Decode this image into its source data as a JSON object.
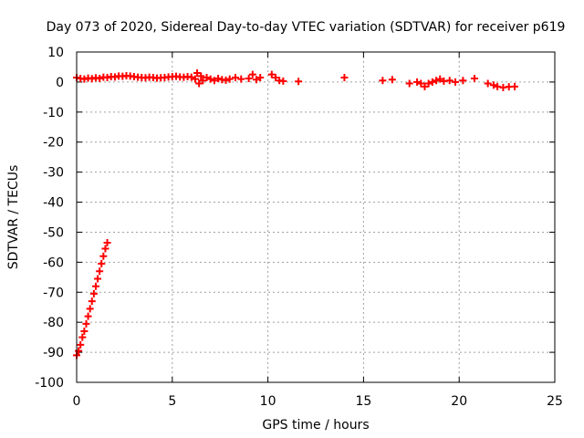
{
  "chart_data": {
    "type": "scatter",
    "title": "Day 073 of 2020, Sidereal Day-to-day VTEC variation (SDTVAR) for receiver p619",
    "xlabel": "GPS time / hours",
    "ylabel": "SDTVAR / TECUs",
    "xlim": [
      0,
      25
    ],
    "ylim": [
      -100,
      10
    ],
    "xticks": [
      "0",
      "5",
      "10",
      "15",
      "20",
      "25"
    ],
    "yticks": [
      "10",
      "0",
      "-10",
      "-20",
      "-30",
      "-40",
      "-50",
      "-60",
      "-70",
      "-80",
      "-90",
      "-100"
    ],
    "grid": true,
    "marker": "plus",
    "color": "#ff0000",
    "series": [
      {
        "points": [
          [
            0.0,
            1.5
          ],
          [
            0.2,
            1.2
          ],
          [
            0.4,
            1.0
          ],
          [
            0.6,
            1.3
          ],
          [
            0.8,
            1.1
          ],
          [
            1.0,
            1.4
          ],
          [
            1.2,
            1.2
          ],
          [
            1.4,
            1.6
          ],
          [
            1.6,
            1.5
          ],
          [
            1.8,
            1.8
          ],
          [
            2.0,
            1.7
          ],
          [
            2.2,
            2.0
          ],
          [
            2.4,
            1.9
          ],
          [
            2.6,
            2.1
          ],
          [
            2.8,
            2.0
          ],
          [
            3.0,
            1.8
          ],
          [
            3.2,
            1.6
          ],
          [
            3.4,
            1.5
          ],
          [
            3.6,
            1.4
          ],
          [
            3.8,
            1.6
          ],
          [
            4.0,
            1.5
          ],
          [
            4.2,
            1.3
          ],
          [
            4.4,
            1.4
          ],
          [
            4.6,
            1.5
          ],
          [
            4.8,
            1.7
          ],
          [
            5.0,
            1.8
          ],
          [
            5.2,
            1.9
          ],
          [
            5.4,
            1.7
          ],
          [
            5.6,
            1.6
          ],
          [
            5.8,
            1.8
          ],
          [
            6.0,
            1.6
          ],
          [
            6.2,
            1.0
          ],
          [
            6.3,
            3.0
          ],
          [
            6.4,
            -0.5
          ],
          [
            6.5,
            2.0
          ],
          [
            6.6,
            0.5
          ],
          [
            6.8,
            1.5
          ],
          [
            7.0,
            1.0
          ],
          [
            7.2,
            0.5
          ],
          [
            7.4,
            1.2
          ],
          [
            7.6,
            0.8
          ],
          [
            7.8,
            0.6
          ],
          [
            8.0,
            1.0
          ],
          [
            8.3,
            1.5
          ],
          [
            8.6,
            1.0
          ],
          [
            9.0,
            1.2
          ],
          [
            9.2,
            2.5
          ],
          [
            9.4,
            0.8
          ],
          [
            9.6,
            1.5
          ],
          [
            10.2,
            2.5
          ],
          [
            10.4,
            1.5
          ],
          [
            10.6,
            0.5
          ],
          [
            10.8,
            0.3
          ],
          [
            11.6,
            0.2
          ],
          [
            14.0,
            1.5
          ],
          [
            16.0,
            0.5
          ],
          [
            16.5,
            0.8
          ],
          [
            17.4,
            -0.5
          ],
          [
            17.8,
            0.0
          ],
          [
            18.0,
            -0.5
          ],
          [
            18.2,
            -1.5
          ],
          [
            18.4,
            -0.5
          ],
          [
            18.6,
            0.0
          ],
          [
            18.8,
            0.5
          ],
          [
            19.0,
            1.0
          ],
          [
            19.2,
            0.3
          ],
          [
            19.5,
            0.5
          ],
          [
            19.8,
            0.0
          ],
          [
            20.2,
            0.5
          ],
          [
            20.8,
            1.2
          ],
          [
            21.5,
            -0.5
          ],
          [
            21.8,
            -1.0
          ],
          [
            22.0,
            -1.5
          ],
          [
            22.3,
            -1.8
          ],
          [
            22.6,
            -1.6
          ],
          [
            22.9,
            -1.5
          ],
          [
            0.0,
            -91.0
          ],
          [
            0.1,
            -89.5
          ],
          [
            0.2,
            -87.5
          ],
          [
            0.3,
            -85.0
          ],
          [
            0.4,
            -83.0
          ],
          [
            0.5,
            -80.5
          ],
          [
            0.6,
            -78.0
          ],
          [
            0.7,
            -75.5
          ],
          [
            0.8,
            -73.0
          ],
          [
            0.9,
            -70.5
          ],
          [
            1.0,
            -68.0
          ],
          [
            1.1,
            -65.5
          ],
          [
            1.2,
            -63.0
          ],
          [
            1.3,
            -60.5
          ],
          [
            1.4,
            -58.0
          ],
          [
            1.5,
            -55.5
          ],
          [
            1.6,
            -53.5
          ]
        ]
      }
    ]
  }
}
